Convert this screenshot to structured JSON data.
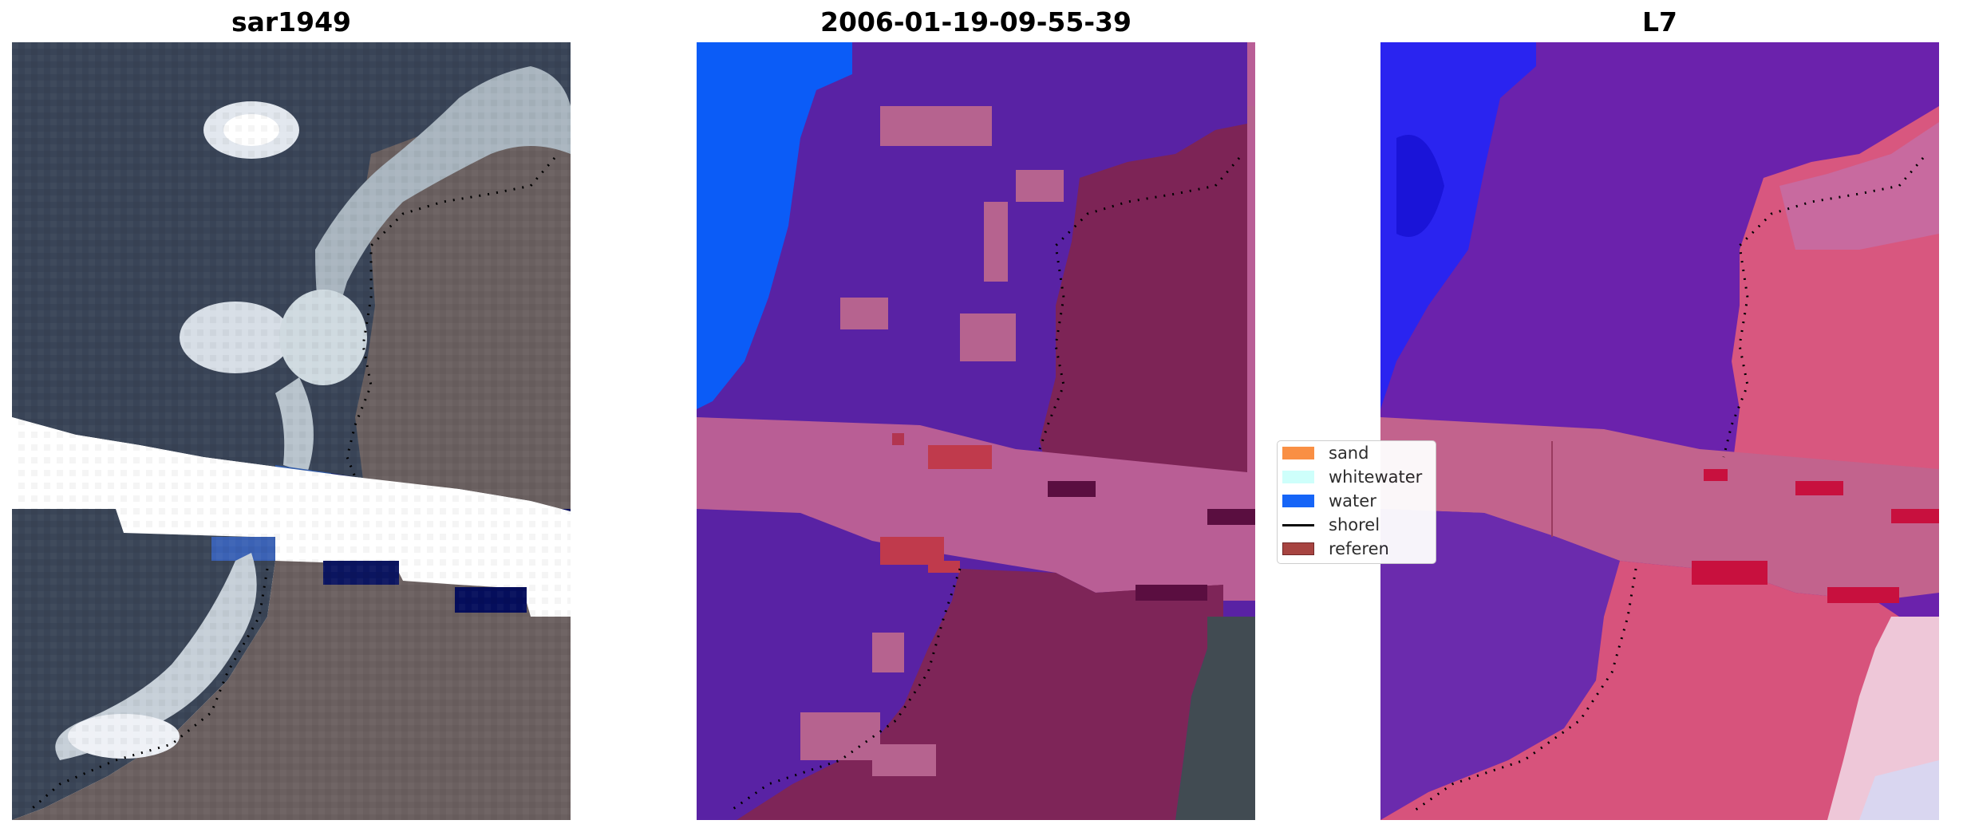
{
  "panels": [
    {
      "title": "sar1949"
    },
    {
      "title": "2006-01-19-09-55-39"
    },
    {
      "title": "L7"
    }
  ],
  "legend": {
    "items": [
      {
        "label": "sand",
        "color": "#f98a3a",
        "type": "patch"
      },
      {
        "label": "whitewater",
        "color": "#ccfffb",
        "type": "patch"
      },
      {
        "label": "water",
        "color": "#0a5df7",
        "type": "patch"
      },
      {
        "label": "shorel",
        "color": "#000000",
        "type": "line"
      },
      {
        "label": "referen",
        "color": "#a33a37",
        "type": "patch"
      }
    ]
  },
  "colors": {
    "ocean": "#3b4656",
    "land": "#6b6160",
    "surf": "#dfe6ee",
    "dark_band": "#050e5c",
    "class_sea": "#5a22a5",
    "class_blue": "#0a5df7",
    "class_pink": "#b95e96",
    "class_land": "#7e2558",
    "class_red": "#c03a4c",
    "l7_purple": "#6d22ad",
    "l7_blue": "#2a24f2",
    "l7_land": "#d9537d",
    "l7_white": "#eec7d8"
  }
}
